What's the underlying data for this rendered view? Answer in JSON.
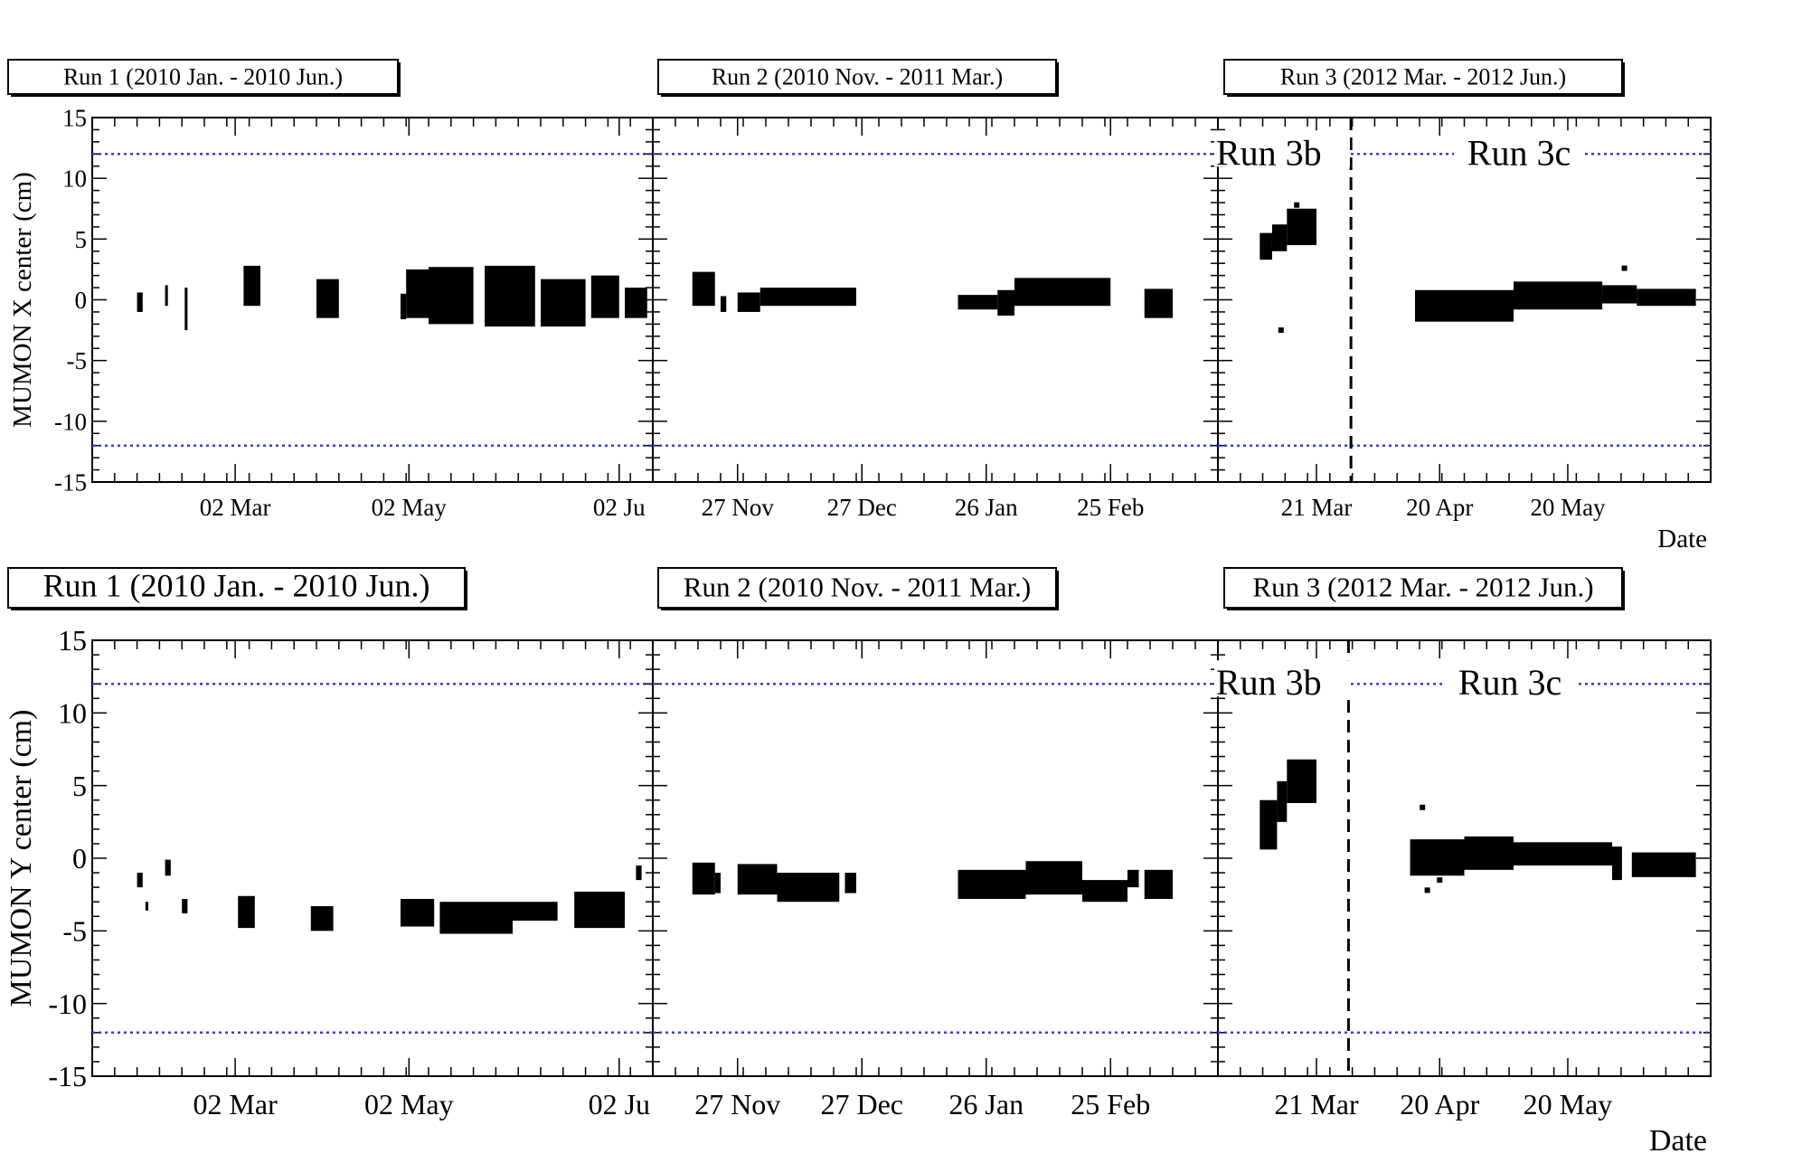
{
  "chart_data": [
    {
      "type": "scatter",
      "name": "MUMON X center",
      "ylabel": "MUMON X center (cm)",
      "xlabel": "Date",
      "ylim": [
        -15,
        15
      ],
      "y_ticks": [
        "15",
        "10",
        "5",
        "0",
        "-5",
        "-10",
        "-15"
      ],
      "limit_lines": [
        12,
        -12
      ],
      "limit_line_color": "#3344cc",
      "marker_color": "#000000",
      "panels": [
        {
          "label": "Run 1 (2010 Jan. - 2010 Jun.)",
          "x_ticks": [
            "02 Mar",
            "02 May",
            "02 Ju"
          ],
          "blocks": [
            [
              0.08,
              0.09,
              -1,
              0.6
            ],
            [
              0.13,
              0.135,
              -0.5,
              1.2
            ],
            [
              0.165,
              0.17,
              -2.5,
              1
            ],
            [
              0.27,
              0.3,
              -0.5,
              2.8
            ],
            [
              0.4,
              0.44,
              -1.5,
              1.7
            ],
            [
              0.55,
              0.56,
              -1.6,
              0.5
            ],
            [
              0.56,
              0.6,
              -1.5,
              2.5
            ],
            [
              0.6,
              0.68,
              -2,
              2.7
            ],
            [
              0.7,
              0.79,
              -2.2,
              2.8
            ],
            [
              0.8,
              0.88,
              -2.2,
              1.7
            ],
            [
              0.89,
              0.94,
              -1.5,
              2
            ],
            [
              0.95,
              0.99,
              -1.5,
              1
            ]
          ],
          "dots": []
        },
        {
          "label": "Run 2 (2010 Nov. - 2011 Mar.)",
          "x_ticks": [
            "27 Nov",
            "27 Dec",
            "26 Jan",
            "25 Feb"
          ],
          "blocks": [
            [
              0.07,
              0.11,
              -0.5,
              2.3
            ],
            [
              0.12,
              0.13,
              -1,
              0.3
            ],
            [
              0.15,
              0.19,
              -1,
              0.6
            ],
            [
              0.19,
              0.36,
              -0.5,
              1
            ],
            [
              0.54,
              0.61,
              -0.8,
              0.4
            ],
            [
              0.61,
              0.64,
              -1.3,
              0.8
            ],
            [
              0.64,
              0.81,
              -0.5,
              1.8
            ],
            [
              0.87,
              0.92,
              -1.5,
              0.9
            ]
          ],
          "dots": []
        },
        {
          "label": "Run 3 (2012 Mar. - 2012 Jun.)",
          "x_ticks": [
            "21 Mar",
            "20 Apr",
            "20 May"
          ],
          "region_labels": [
            "Run 3b",
            "Run 3c"
          ],
          "divider_frac": 0.27,
          "blocks": [
            [
              0.085,
              0.11,
              3.3,
              5.5
            ],
            [
              0.11,
              0.14,
              4,
              6.2
            ],
            [
              0.14,
              0.2,
              4.5,
              7.5
            ],
            [
              0.4,
              0.6,
              -1.8,
              0.8
            ],
            [
              0.6,
              0.78,
              -0.8,
              1.5
            ],
            [
              0.78,
              0.85,
              -0.3,
              1.2
            ],
            [
              0.85,
              0.97,
              -0.5,
              0.9
            ]
          ],
          "dots": [
            [
              0.128,
              -2.5
            ],
            [
              0.16,
              7.8
            ],
            [
              0.825,
              2.6
            ]
          ]
        }
      ],
      "date_label": "Date"
    },
    {
      "type": "scatter",
      "name": "MUMON Y center",
      "ylabel": "MUMON Y center (cm)",
      "xlabel": "Date",
      "ylim": [
        -15,
        15
      ],
      "y_ticks": [
        "15",
        "10",
        "5",
        "0",
        "-5",
        "-10",
        "-15"
      ],
      "limit_lines": [
        12,
        -12
      ],
      "limit_line_color": "#3344cc",
      "marker_color": "#000000",
      "panels": [
        {
          "label": "Run 1 (2010 Jan. - 2010 Jun.)",
          "x_ticks": [
            "02 Mar",
            "02 May",
            "02 Ju"
          ],
          "blocks": [
            [
              0.08,
              0.09,
              -2,
              -1
            ],
            [
              0.095,
              0.1,
              -3.6,
              -3
            ],
            [
              0.13,
              0.14,
              -1.2,
              -0.1
            ],
            [
              0.16,
              0.17,
              -3.8,
              -2.8
            ],
            [
              0.26,
              0.29,
              -4.8,
              -2.6
            ],
            [
              0.39,
              0.43,
              -5,
              -3.3
            ],
            [
              0.55,
              0.61,
              -4.7,
              -2.8
            ],
            [
              0.62,
              0.75,
              -5.2,
              -3
            ],
            [
              0.75,
              0.83,
              -4.3,
              -3
            ],
            [
              0.86,
              0.95,
              -4.8,
              -2.3
            ],
            [
              0.97,
              0.98,
              -1.5,
              -0.5
            ]
          ],
          "dots": []
        },
        {
          "label": "Run 2 (2010 Nov. - 2011 Mar.)",
          "x_ticks": [
            "27 Nov",
            "27 Dec",
            "26 Jan",
            "25 Feb"
          ],
          "blocks": [
            [
              0.07,
              0.11,
              -2.5,
              -0.3
            ],
            [
              0.11,
              0.12,
              -2.4,
              -1
            ],
            [
              0.15,
              0.22,
              -2.5,
              -0.4
            ],
            [
              0.22,
              0.33,
              -3,
              -1
            ],
            [
              0.34,
              0.36,
              -2.4,
              -1
            ],
            [
              0.54,
              0.66,
              -2.8,
              -0.8
            ],
            [
              0.66,
              0.76,
              -2.5,
              -0.2
            ],
            [
              0.76,
              0.84,
              -3,
              -1.5
            ],
            [
              0.84,
              0.86,
              -2,
              -0.8
            ],
            [
              0.87,
              0.92,
              -2.8,
              -0.8
            ]
          ],
          "dots": []
        },
        {
          "label": "Run 3 (2012 Mar. - 2012 Jun.)",
          "x_ticks": [
            "21 Mar",
            "20 Apr",
            "20 May"
          ],
          "region_labels": [
            "Run 3b",
            "Run 3c"
          ],
          "divider_frac": 0.265,
          "blocks": [
            [
              0.085,
              0.12,
              0.6,
              4
            ],
            [
              0.12,
              0.14,
              2.5,
              5.3
            ],
            [
              0.14,
              0.2,
              3.8,
              6.8
            ],
            [
              0.39,
              0.5,
              -1.2,
              1.3
            ],
            [
              0.5,
              0.6,
              -0.8,
              1.5
            ],
            [
              0.6,
              0.8,
              -0.5,
              1.1
            ],
            [
              0.8,
              0.82,
              -1.5,
              0.8
            ],
            [
              0.84,
              0.97,
              -1.3,
              0.4
            ]
          ],
          "dots": [
            [
              0.415,
              3.5
            ],
            [
              0.425,
              -2.2
            ],
            [
              0.45,
              -1.5
            ]
          ]
        }
      ],
      "date_label": "Date"
    }
  ]
}
